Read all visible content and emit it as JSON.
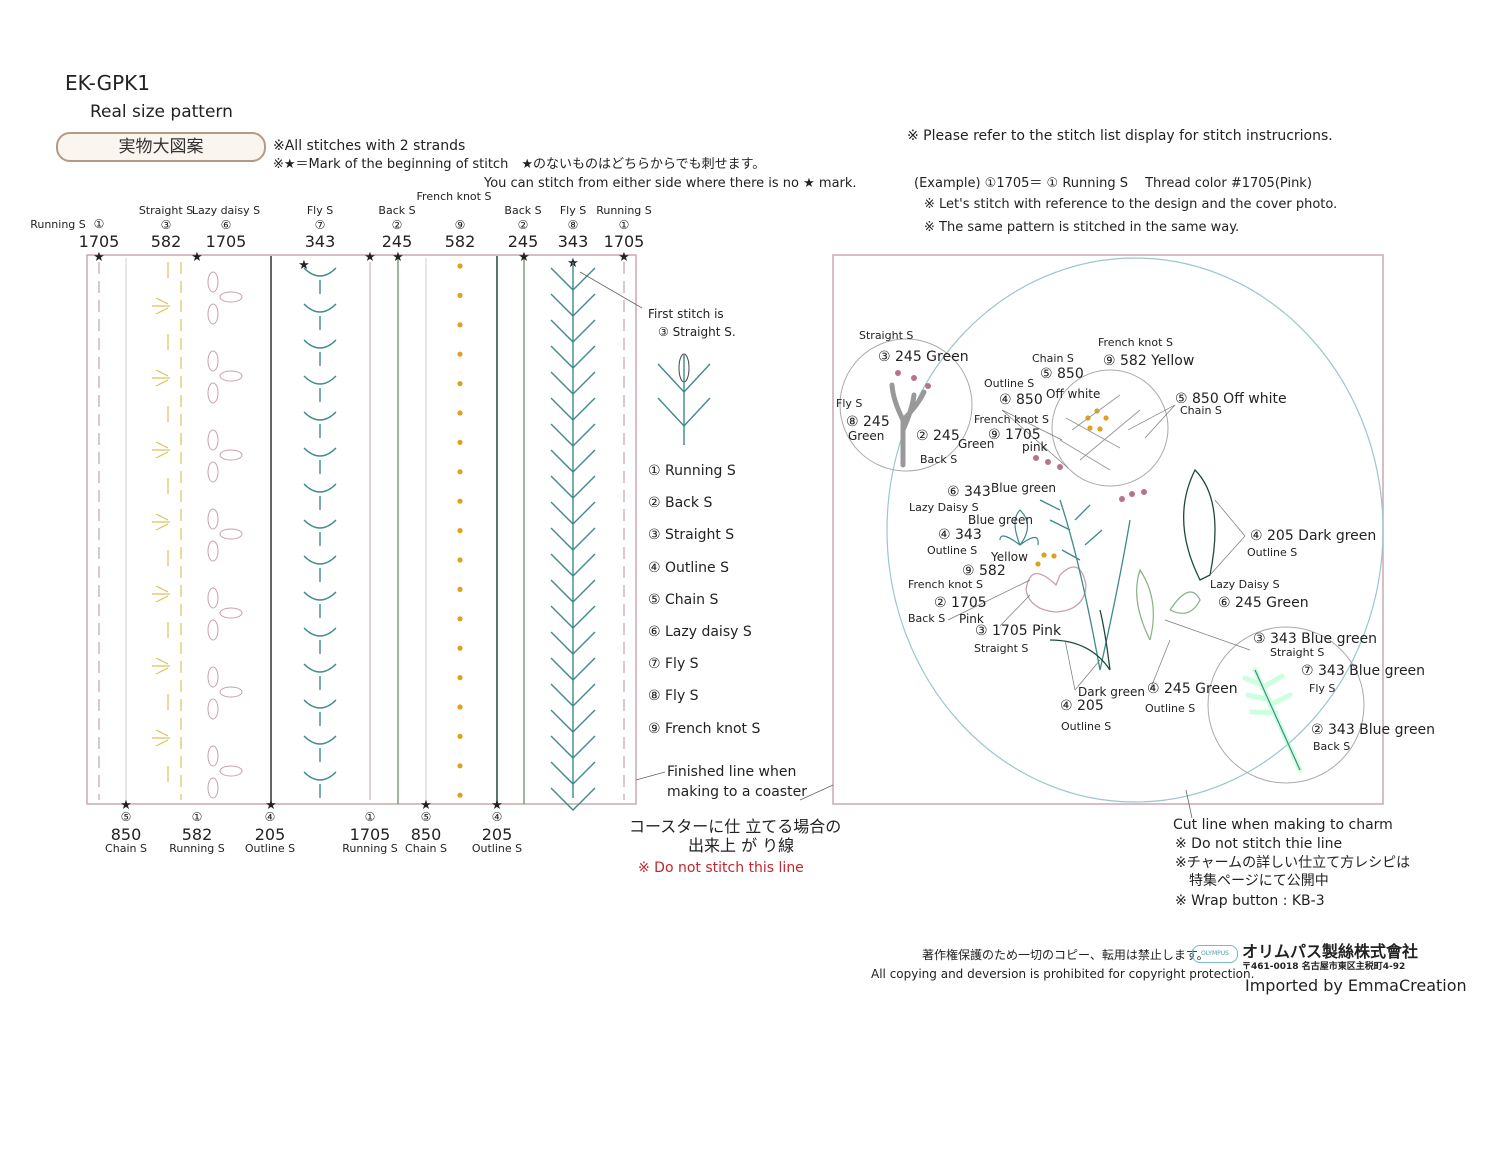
{
  "header": {
    "code": "EK-GPK1",
    "subtitle": "Real size pattern",
    "badge": "実物大図案",
    "note1": "※All stitches with 2 strands",
    "note2": "※★＝Mark of the beginning of stitch　★のないものはどちらからでも刺せます。",
    "note3": "You can stitch from either side where there is no ★ mark.",
    "right_note": "※  Please refer to the stitch list display for stitch instrucrions.",
    "example": "(Example) ①1705＝ ① Running S　 Thread color #1705(Pink)",
    "example_note1": "※  Let's stitch with reference to the design and the cover photo.",
    "example_note2": "※  The same pattern is stitched in the same way."
  },
  "colors": {
    "pink": "#c9a0ad",
    "yellow": "#d9c45a",
    "teal": "#3d8a8a",
    "dark_green": "#1f4a3a",
    "orange": "#e0a020",
    "frame": "#c9a9b0",
    "hoop": "#9cc6cc",
    "french_pink": "#b8738a"
  },
  "top_labels": [
    {
      "name": "Running S",
      "num": "①",
      "thread": "1705"
    },
    {
      "name": "Straight S",
      "num": "③",
      "thread": "582"
    },
    {
      "name": "Lazy daisy S",
      "num": "⑥",
      "thread": "1705"
    },
    {
      "name": "Fly S",
      "num": "⑦",
      "thread": "343"
    },
    {
      "name": "Back S",
      "num": "②",
      "thread": "245"
    },
    {
      "name": "French knot S",
      "num": "⑨",
      "thread": "582"
    },
    {
      "name": "Back S",
      "num": "②",
      "thread": "245"
    },
    {
      "name": "Fly S",
      "num": "⑧",
      "thread": "343"
    },
    {
      "name": "Running S",
      "num": "①",
      "thread": "1705"
    }
  ],
  "bottom_labels": [
    {
      "num": "⑤",
      "thread": "850",
      "name": "Chain S"
    },
    {
      "num": "①",
      "thread": "582",
      "name": "Running S"
    },
    {
      "num": "④",
      "thread": "205",
      "name": "Outline S"
    },
    {
      "num": "①",
      "thread": "1705",
      "name": "Running S"
    },
    {
      "num": "⑤",
      "thread": "850",
      "name": "Chain S"
    },
    {
      "num": "④",
      "thread": "205",
      "name": "Outline S"
    }
  ],
  "first_stitch": {
    "line1": "First stitch is",
    "line2": "③  Straight S."
  },
  "legend": [
    "① Running S",
    "② Back S",
    "③ Straight S",
    "④ Outline S",
    "⑤ Chain S",
    "⑥ Lazy daisy S",
    "⑦ Fly S",
    "⑧ Fly S",
    "⑨ French knot S"
  ],
  "coaster": {
    "line1": "Finished line when",
    "line2": "making to a coaster",
    "jp1": "コースターに仕 立てる場合の",
    "jp2": "出来上 が り線",
    "warning": "※   Do not stitch this line"
  },
  "annotations": [
    "Straight S",
    "③ 245 Green",
    "Fly S",
    "⑧ 245",
    "Green",
    "② 245",
    "Green",
    "Back S",
    "Chain S",
    "⑤ 850",
    "French knot S",
    "⑨ 582  Yellow",
    "Outline S",
    "④ 850",
    "Off white",
    "French knot S",
    "⑨ 1705",
    "pink",
    "⑤ 850  Off white",
    "Chain S",
    "⑥ 343",
    "Blue green",
    "Lazy Daisy S",
    "Blue green",
    "④ 343",
    "Outline S",
    "Yellow",
    "⑨ 582",
    "French knot S",
    "② 1705",
    "Back S",
    "Pink",
    "③ 1705 Pink",
    "Straight S",
    "④ 205  Dark green",
    "Outline S",
    "Lazy Daisy S",
    "⑥ 245  Green",
    "③ 343 Blue green",
    "Straight S",
    "⑦ 343  Blue green",
    "Fly S",
    "② 343 Blue green",
    "Back S",
    "Dark green",
    "④ 205",
    "Outline S",
    "④ 245 Green",
    "Outline S"
  ],
  "charm": {
    "line1": "Cut line when making to charm",
    "line2": "※  Do not stitch thie line",
    "line3": "※チャームの詳しい仕立て方レシピは",
    "line4": "特集ページにて公開中",
    "line5": "※  Wrap button : KB-3"
  },
  "footer": {
    "jp_copyright": "著作権保護のため一切のコピー、転用は禁止します。",
    "en_copyright": "All copying and deversion is prohibited for copyright protection.",
    "company": "オリムパス製絲株式會社",
    "address": "〒461-0018  名古屋市東区主税町4-92",
    "logo_text": "OLYMPUS",
    "importer": "Imported by EmmaCreation"
  }
}
